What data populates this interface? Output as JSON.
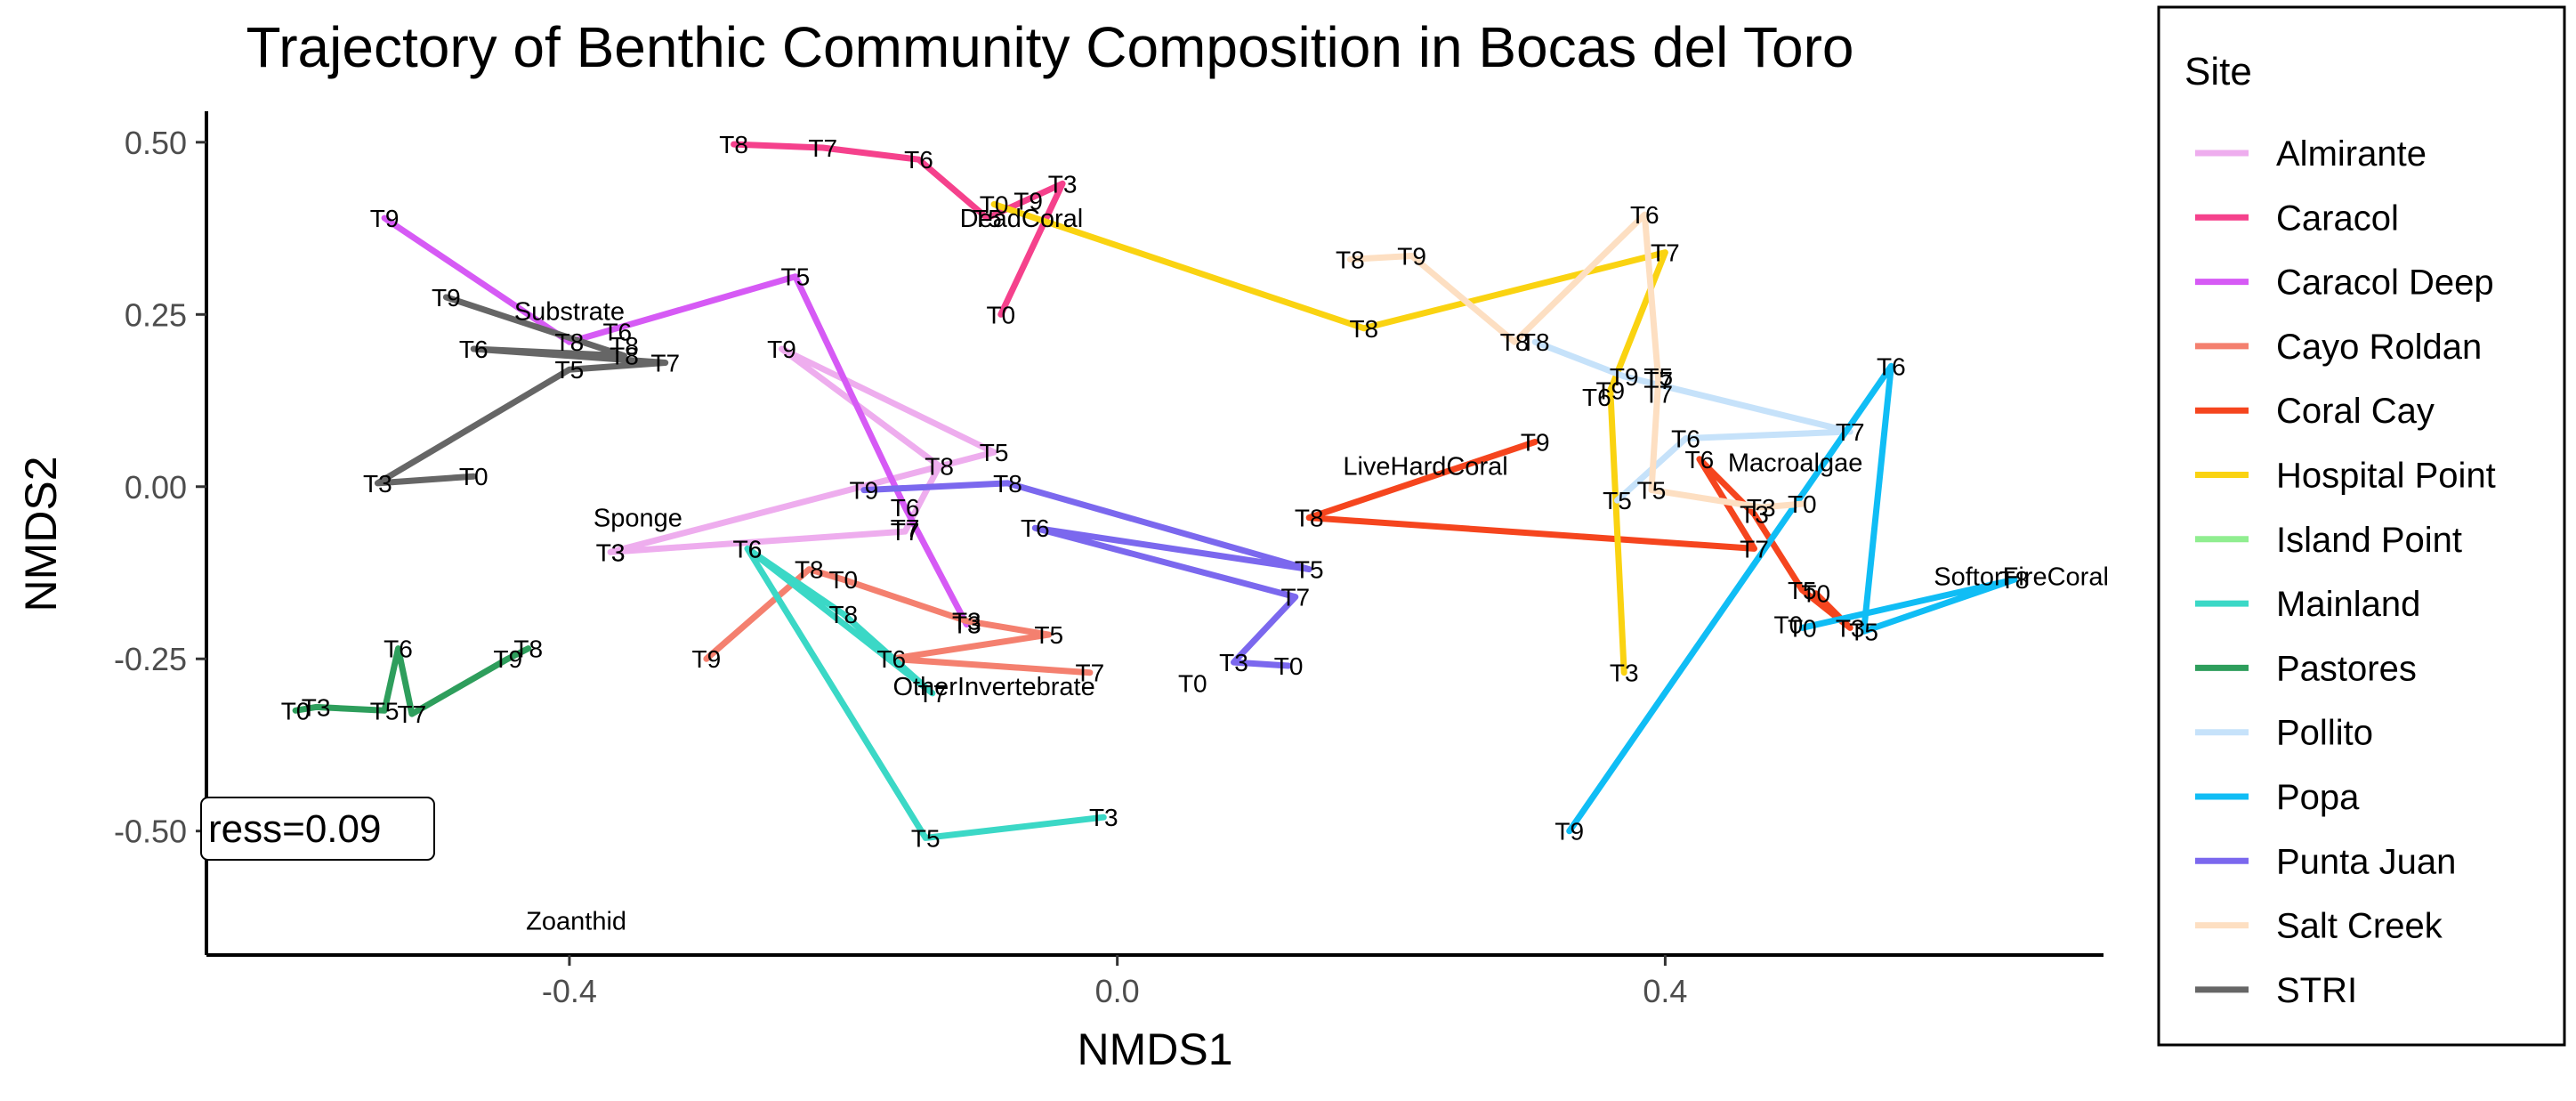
{
  "chart_data": {
    "type": "line",
    "title": "Trajectory of Benthic Community Composition in Bocas del Toro",
    "xlabel": "NMDS1",
    "ylabel": "NMDS2",
    "xlim": [
      -0.665,
      0.72
    ],
    "ylim": [
      -0.68,
      0.545
    ],
    "xticks": [
      -0.4,
      0.0,
      0.4
    ],
    "xtick_labels": [
      "-0.4",
      "0.0",
      "0.4"
    ],
    "yticks": [
      0.5,
      0.25,
      0.0,
      -0.25,
      -0.5
    ],
    "ytick_labels": [
      "0.50",
      "0.25",
      "0.00",
      "-0.25",
      "-0.50"
    ],
    "grid": false,
    "legend": {
      "title": "Site",
      "position": "right"
    },
    "stress_label": "ress=0.09",
    "series": [
      {
        "name": "Almirante",
        "color": "#EEADEE",
        "points": [
          {
            "label": "T3",
            "x": -0.37,
            "y": -0.095
          },
          {
            "label": "T5",
            "x": -0.09,
            "y": 0.05
          },
          {
            "label": "T9",
            "x": -0.245,
            "y": 0.2
          },
          {
            "label": "T8",
            "x": -0.13,
            "y": 0.03
          },
          {
            "label": "T7",
            "x": -0.155,
            "y": -0.065
          },
          {
            "label": "T3",
            "x": -0.37,
            "y": -0.095
          }
        ]
      },
      {
        "name": "Caracol",
        "color": "#F5418C",
        "points": [
          {
            "label": "T8",
            "x": -0.28,
            "y": 0.497
          },
          {
            "label": "T7",
            "x": -0.215,
            "y": 0.492
          },
          {
            "label": "T6",
            "x": -0.145,
            "y": 0.475
          },
          {
            "label": "T5",
            "x": -0.095,
            "y": 0.39
          },
          {
            "label": "T3",
            "x": -0.04,
            "y": 0.44
          },
          {
            "label": "T0",
            "x": -0.085,
            "y": 0.25
          }
        ]
      },
      {
        "name": "Caracol Deep",
        "color": "#D65AF5",
        "points": [
          {
            "label": "T9",
            "x": -0.535,
            "y": 0.39
          },
          {
            "label": "T8",
            "x": -0.4,
            "y": 0.21
          },
          {
            "label": "T5",
            "x": -0.235,
            "y": 0.305
          },
          {
            "label": "T6",
            "x": -0.155,
            "y": -0.03
          },
          {
            "label": "T3",
            "x": -0.11,
            "y": -0.2
          }
        ]
      },
      {
        "name": "Cayo Roldan",
        "color": "#F4806F",
        "points": [
          {
            "label": "T9",
            "x": -0.3,
            "y": -0.25
          },
          {
            "label": "T8",
            "x": -0.225,
            "y": -0.12
          },
          {
            "label": "T0",
            "x": -0.2,
            "y": -0.135
          },
          {
            "label": "T3",
            "x": -0.11,
            "y": -0.195
          },
          {
            "label": "T5",
            "x": -0.05,
            "y": -0.215
          },
          {
            "label": "T6",
            "x": -0.165,
            "y": -0.25
          },
          {
            "label": "T7",
            "x": -0.02,
            "y": -0.27
          }
        ]
      },
      {
        "name": "Coral Cay",
        "color": "#F5451E",
        "points": [
          {
            "label": "T9",
            "x": 0.305,
            "y": 0.065
          },
          {
            "label": "T8",
            "x": 0.14,
            "y": -0.045
          },
          {
            "label": "T7",
            "x": 0.465,
            "y": -0.09
          },
          {
            "label": "T6",
            "x": 0.425,
            "y": 0.04
          },
          {
            "label": "T3",
            "x": 0.465,
            "y": -0.04
          },
          {
            "label": "T5",
            "x": 0.5,
            "y": -0.15
          },
          {
            "label": "T3",
            "x": 0.535,
            "y": -0.205
          },
          {
            "label": "T0",
            "x": 0.51,
            "y": -0.155
          }
        ]
      },
      {
        "name": "Hospital Point",
        "color": "#FAD311",
        "points": [
          {
            "label": "T0",
            "x": -0.09,
            "y": 0.41
          },
          {
            "label": "T8",
            "x": 0.18,
            "y": 0.23
          },
          {
            "label": "T7",
            "x": 0.4,
            "y": 0.34
          },
          {
            "label": "T9",
            "x": 0.36,
            "y": 0.14
          },
          {
            "label": "T3",
            "x": 0.37,
            "y": -0.27
          }
        ]
      },
      {
        "name": "Island Point",
        "color": "#90EE90",
        "points": []
      },
      {
        "name": "Mainland",
        "color": "#3BD8C6",
        "points": [
          {
            "label": "T6",
            "x": -0.27,
            "y": -0.09
          },
          {
            "label": "T8",
            "x": -0.2,
            "y": -0.185
          },
          {
            "label": "T7",
            "x": -0.135,
            "y": -0.3
          },
          {
            "label": "T6",
            "x": -0.27,
            "y": -0.09
          },
          {
            "label": "T5",
            "x": -0.14,
            "y": -0.51
          },
          {
            "label": "T3",
            "x": -0.01,
            "y": -0.48
          }
        ]
      },
      {
        "name": "Pastores",
        "color": "#2E9E5C",
        "points": [
          {
            "label": "T0",
            "x": -0.6,
            "y": -0.325
          },
          {
            "label": "T3",
            "x": -0.585,
            "y": -0.32
          },
          {
            "label": "T5",
            "x": -0.535,
            "y": -0.325
          },
          {
            "label": "T6",
            "x": -0.525,
            "y": -0.235
          },
          {
            "label": "T7",
            "x": -0.515,
            "y": -0.33
          },
          {
            "label": "T9",
            "x": -0.445,
            "y": -0.25
          },
          {
            "label": "T8",
            "x": -0.43,
            "y": -0.235
          }
        ]
      },
      {
        "name": "Pollito",
        "color": "#C6E2FA",
        "points": [
          {
            "label": "T8",
            "x": 0.305,
            "y": 0.21
          },
          {
            "label": "T9",
            "x": 0.37,
            "y": 0.16
          },
          {
            "label": "T7",
            "x": 0.535,
            "y": 0.08
          },
          {
            "label": "T6",
            "x": 0.415,
            "y": 0.07
          },
          {
            "label": "T5",
            "x": 0.365,
            "y": -0.02
          }
        ]
      },
      {
        "name": "Popa",
        "color": "#10BDF5",
        "points": [
          {
            "label": "T9",
            "x": 0.33,
            "y": -0.5
          },
          {
            "label": "T6",
            "x": 0.565,
            "y": 0.175
          },
          {
            "label": "T5",
            "x": 0.545,
            "y": -0.21
          },
          {
            "label": "T8",
            "x": 0.655,
            "y": -0.135
          },
          {
            "label": "T0",
            "x": 0.5,
            "y": -0.205
          }
        ]
      },
      {
        "name": "Punta Juan",
        "color": "#7B68EE",
        "points": [
          {
            "label": "T9",
            "x": -0.185,
            "y": -0.005
          },
          {
            "label": "T8",
            "x": -0.08,
            "y": 0.005
          },
          {
            "label": "T5",
            "x": 0.14,
            "y": -0.12
          },
          {
            "label": "T6",
            "x": -0.06,
            "y": -0.06
          },
          {
            "label": "T7",
            "x": 0.13,
            "y": -0.16
          },
          {
            "label": "T3",
            "x": 0.085,
            "y": -0.255
          },
          {
            "label": "T0",
            "x": 0.125,
            "y": -0.26
          }
        ]
      },
      {
        "name": "Salt Creek",
        "color": "#FDDFC2",
        "points": [
          {
            "label": "T8",
            "x": 0.17,
            "y": 0.33
          },
          {
            "label": "T9",
            "x": 0.215,
            "y": 0.335
          },
          {
            "label": "T8",
            "x": 0.29,
            "y": 0.21
          },
          {
            "label": "T6",
            "x": 0.385,
            "y": 0.395
          },
          {
            "label": "T7",
            "x": 0.395,
            "y": 0.155
          },
          {
            "label": "T5",
            "x": 0.39,
            "y": -0.005
          },
          {
            "label": "T3",
            "x": 0.47,
            "y": -0.03
          },
          {
            "label": "T0",
            "x": 0.5,
            "y": -0.025
          }
        ]
      },
      {
        "name": "STRI",
        "color": "#666666",
        "points": [
          {
            "label": "T9",
            "x": -0.49,
            "y": 0.275
          },
          {
            "label": "T8",
            "x": -0.36,
            "y": 0.19
          },
          {
            "label": "T6",
            "x": -0.47,
            "y": 0.2
          },
          {
            "label": "T7",
            "x": -0.33,
            "y": 0.18
          },
          {
            "label": "T5",
            "x": -0.4,
            "y": 0.17
          },
          {
            "label": "T3",
            "x": -0.54,
            "y": 0.005
          },
          {
            "label": "T0",
            "x": -0.47,
            "y": 0.015
          }
        ]
      }
    ],
    "extra_point_labels": [
      {
        "label": "T0",
        "x": 0.055,
        "y": -0.285
      },
      {
        "label": "T6",
        "x": 0.35,
        "y": 0.13
      },
      {
        "label": "T5",
        "x": 0.395,
        "y": 0.16
      },
      {
        "label": "T7",
        "x": 0.395,
        "y": 0.135
      },
      {
        "label": "T0",
        "x": 0.49,
        "y": -0.2
      },
      {
        "label": "T6",
        "x": -0.365,
        "y": 0.225
      },
      {
        "label": "T8",
        "x": -0.36,
        "y": 0.205
      },
      {
        "label": "T7",
        "x": -0.155,
        "y": -0.06
      },
      {
        "label": "T9",
        "x": -0.065,
        "y": 0.415
      }
    ],
    "species_labels": [
      {
        "label": "Substrate",
        "x": -0.4,
        "y": 0.255
      },
      {
        "label": "DeadCoral",
        "x": -0.07,
        "y": 0.39
      },
      {
        "label": "Sponge",
        "x": -0.35,
        "y": -0.045
      },
      {
        "label": "OtherInvertebrate",
        "x": -0.09,
        "y": -0.29
      },
      {
        "label": "LiveHardCoral",
        "x": 0.225,
        "y": 0.03
      },
      {
        "label": "Macroalgae",
        "x": 0.495,
        "y": 0.035
      },
      {
        "label": "SoftorFireCoral",
        "x": 0.66,
        "y": -0.13
      },
      {
        "label": "Zoanthid",
        "x": -0.395,
        "y": -0.63
      }
    ]
  }
}
